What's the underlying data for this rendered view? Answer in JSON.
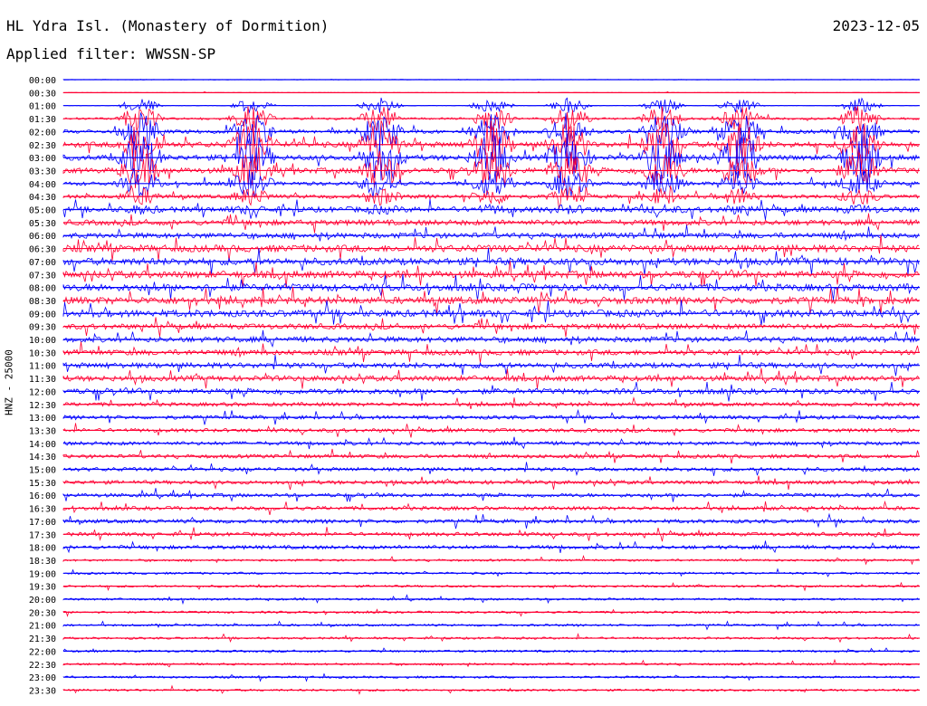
{
  "header": {
    "station": "HL Ydra Isl. (Monastery of Dormition)",
    "date": "2023-12-05",
    "filter": "Applied filter: WWSSN-SP"
  },
  "colors": {
    "even_trace": "#0000ff",
    "odd_trace": "#ff0033",
    "text": "#000000"
  },
  "chart_data": {
    "type": "line",
    "ylabel": "HNZ - 25000",
    "row_labels": [
      "00:00",
      "00:30",
      "01:00",
      "01:30",
      "02:00",
      "02:30",
      "03:00",
      "03:30",
      "04:00",
      "04:30",
      "05:00",
      "05:30",
      "06:00",
      "06:30",
      "07:00",
      "07:30",
      "08:00",
      "08:30",
      "09:00",
      "09:30",
      "10:00",
      "10:30",
      "11:00",
      "11:30",
      "12:00",
      "12:30",
      "13:00",
      "13:30",
      "14:00",
      "14:30",
      "15:00",
      "15:30",
      "16:00",
      "16:30",
      "17:00",
      "17:30",
      "18:00",
      "18:30",
      "19:00",
      "19:30",
      "20:00",
      "20:30",
      "21:00",
      "21:30",
      "22:00",
      "22:30",
      "23:00",
      "23:30"
    ],
    "noise_level": [
      0,
      0,
      0,
      1,
      2,
      3,
      3,
      3,
      2,
      2,
      3,
      3,
      3,
      4,
      4,
      4,
      4,
      4,
      4,
      3,
      3,
      3,
      3,
      3,
      3,
      2,
      2,
      2,
      2,
      2,
      2,
      2,
      2,
      2,
      2,
      2,
      2,
      1,
      1,
      1,
      1,
      1,
      1,
      1,
      1,
      1,
      1,
      1
    ],
    "major_events_x_fraction": [
      0.09,
      0.22,
      0.37,
      0.5,
      0.59,
      0.7,
      0.79,
      0.93
    ],
    "legend": "none",
    "grid": false
  }
}
